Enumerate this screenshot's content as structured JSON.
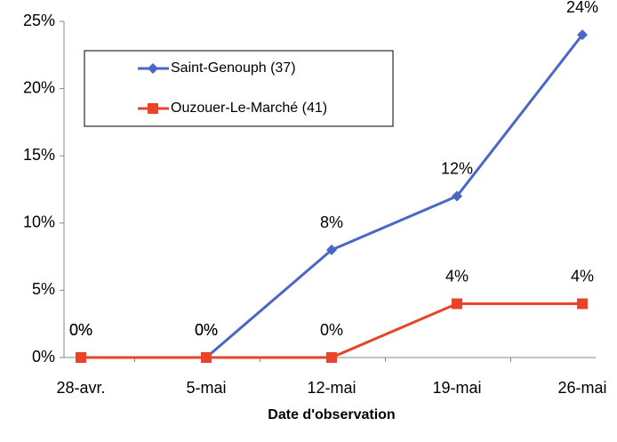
{
  "chart_data": {
    "type": "line",
    "x_label": "Date d'observation",
    "categories": [
      "28-avr.",
      "5-mai",
      "12-mai",
      "19-mai",
      "26-mai"
    ],
    "series": [
      {
        "name": "Saint-Genouph (37)",
        "color": "#4a67c6",
        "marker": "diamond",
        "values": [
          0,
          0,
          8,
          12,
          24
        ],
        "value_labels": [
          "0%",
          "0%",
          "8%",
          "12%",
          "24%"
        ]
      },
      {
        "name": "Ouzouer-Le-Marché (41)",
        "color": "#e8442a",
        "marker": "square",
        "values": [
          0,
          0,
          0,
          4,
          4
        ],
        "value_labels": [
          "0%",
          "0%",
          "0%",
          "4%",
          "4%"
        ]
      }
    ],
    "ylim": [
      0,
      25
    ],
    "yticks": [
      {
        "value": 0,
        "label": "0%"
      },
      {
        "value": 5,
        "label": "5%"
      },
      {
        "value": 10,
        "label": "10%"
      },
      {
        "value": 15,
        "label": "15%"
      },
      {
        "value": 20,
        "label": "20%"
      },
      {
        "value": 25,
        "label": "25%"
      }
    ],
    "grid": false,
    "legend": "upper left"
  }
}
